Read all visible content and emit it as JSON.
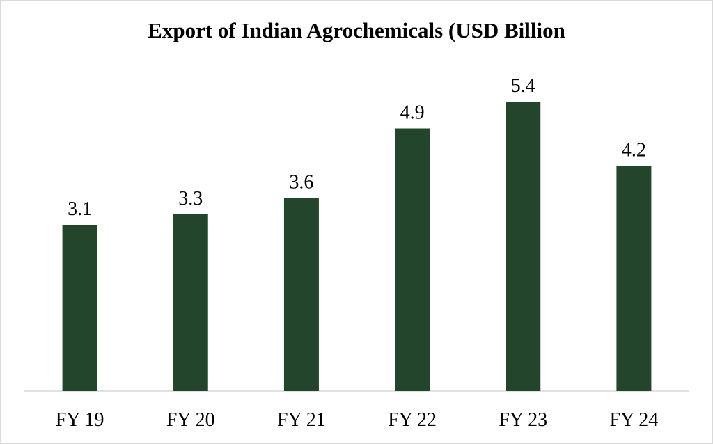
{
  "chart_data": {
    "type": "bar",
    "title": "Export of Indian Agrochemicals (USD Billion",
    "xlabel": "",
    "ylabel": "",
    "categories": [
      "FY 19",
      "FY 20",
      "FY 21",
      "FY 22",
      "FY 23",
      "FY 24"
    ],
    "values": [
      3.1,
      3.3,
      3.6,
      4.9,
      5.4,
      4.2
    ],
    "data_labels": [
      "3.1",
      "3.3",
      "3.6",
      "4.9",
      "5.4",
      "4.2"
    ],
    "ylim": [
      0,
      5.4
    ],
    "grid": false,
    "legend": "none",
    "bar_color": "#22452c",
    "axis_color": "#d9d9d9"
  }
}
